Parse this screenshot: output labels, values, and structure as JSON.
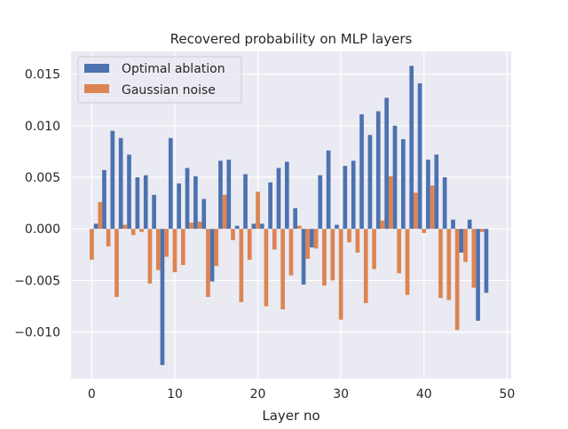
{
  "chart_data": {
    "type": "bar",
    "title": "Recovered probability on MLP layers",
    "xlabel": "Layer no",
    "ylabel": "",
    "xlim": [
      -2.5,
      50.5
    ],
    "ylim": [
      -0.0145,
      0.0172
    ],
    "x_ticks": [
      0,
      10,
      20,
      30,
      40,
      50
    ],
    "x_tick_labels": [
      "0",
      "10",
      "20",
      "30",
      "40",
      "50"
    ],
    "y_ticks": [
      -0.01,
      -0.005,
      0.0,
      0.005,
      0.01,
      0.015
    ],
    "y_tick_labels": [
      "−0.010",
      "−0.005",
      "0.000",
      "0.005",
      "0.010",
      "0.015"
    ],
    "grid": true,
    "legend_position": "upper-left",
    "layers": [
      0,
      1,
      2,
      3,
      4,
      5,
      6,
      7,
      8,
      9,
      10,
      11,
      12,
      13,
      14,
      15,
      16,
      17,
      18,
      19,
      20,
      21,
      22,
      23,
      24,
      25,
      26,
      27,
      28,
      29,
      30,
      31,
      32,
      33,
      34,
      35,
      36,
      37,
      38,
      39,
      40,
      41,
      42,
      43,
      44,
      45,
      46,
      47
    ],
    "series": [
      {
        "name": "Optimal ablation",
        "color": "#4c72b0",
        "values": [
          0.0005,
          0.0057,
          0.0095,
          0.0088,
          0.0072,
          0.005,
          0.0052,
          0.0033,
          -0.0132,
          0.0088,
          0.0044,
          0.0059,
          0.0051,
          0.0029,
          -0.0051,
          0.0066,
          0.0067,
          0.0003,
          0.0053,
          0.0005,
          0.0005,
          0.0045,
          0.0059,
          0.0065,
          0.002,
          -0.0054,
          -0.0018,
          0.0052,
          0.0076,
          0.0004,
          0.0061,
          0.0066,
          0.0111,
          0.0091,
          0.0114,
          0.0127,
          0.01,
          0.0087,
          0.0158,
          0.0141,
          0.0067,
          0.0072,
          0.005,
          0.0009,
          -0.0023,
          0.0009,
          -0.0089,
          -0.0062
        ]
      },
      {
        "name": "Gaussian noise",
        "color": "#dd8452",
        "values": [
          -0.003,
          0.0026,
          -0.0017,
          -0.0066,
          0.0004,
          -0.0006,
          -0.0003,
          -0.0053,
          -0.004,
          -0.0027,
          -0.0042,
          -0.0035,
          0.0006,
          0.0007,
          -0.0066,
          -0.0036,
          0.0033,
          -0.0011,
          -0.0071,
          -0.003,
          0.0036,
          -0.0075,
          -0.002,
          -0.0078,
          -0.0045,
          0.0003,
          -0.0029,
          -0.0019,
          -0.0055,
          -0.005,
          -0.0088,
          -0.0013,
          -0.0023,
          -0.0072,
          -0.0039,
          0.0008,
          0.0051,
          -0.0043,
          -0.0064,
          0.0035,
          -0.0004,
          0.0042,
          -0.0067,
          -0.0069,
          -0.0098,
          -0.0032,
          -0.0057,
          -0.0003
        ]
      }
    ]
  }
}
